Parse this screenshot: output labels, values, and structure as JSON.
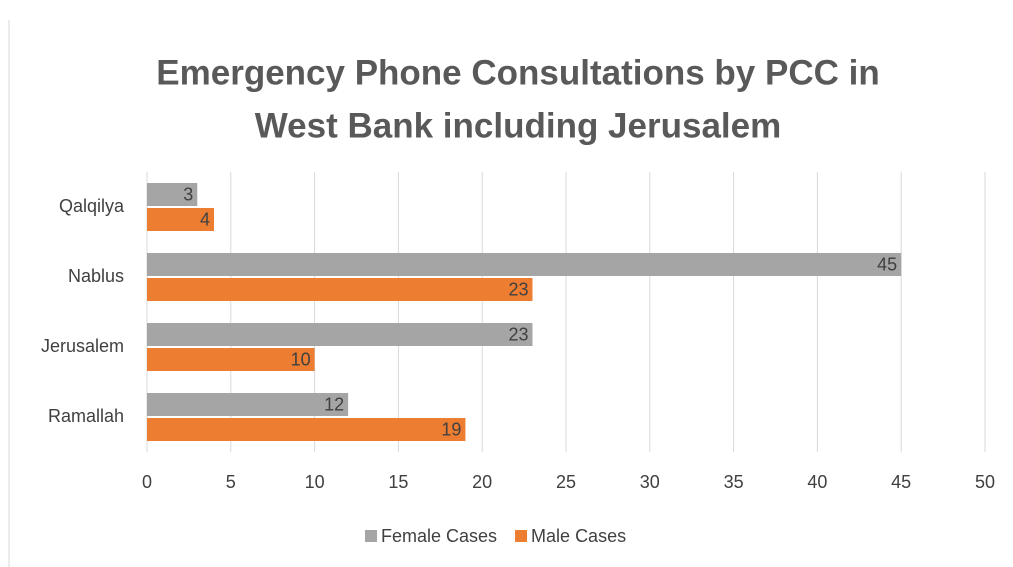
{
  "chart_data": {
    "type": "bar",
    "orientation": "horizontal",
    "title": [
      "Emergency Phone Consultations by PCC in",
      "West Bank including Jerusalem"
    ],
    "categories": [
      "Ramallah",
      "Jerusalem",
      "Nablus",
      "Qalqilya"
    ],
    "series": [
      {
        "name": "Female Cases",
        "color": "#a5a5a5",
        "values": [
          12,
          23,
          45,
          3
        ]
      },
      {
        "name": "Male Cases",
        "color": "#ed7d31",
        "values": [
          19,
          10,
          23,
          4
        ]
      }
    ],
    "xlim": [
      0,
      50
    ],
    "xticks": [
      0,
      5,
      10,
      15,
      20,
      25,
      30,
      35,
      40,
      45,
      50
    ],
    "grid": true,
    "legend": "bottom"
  }
}
